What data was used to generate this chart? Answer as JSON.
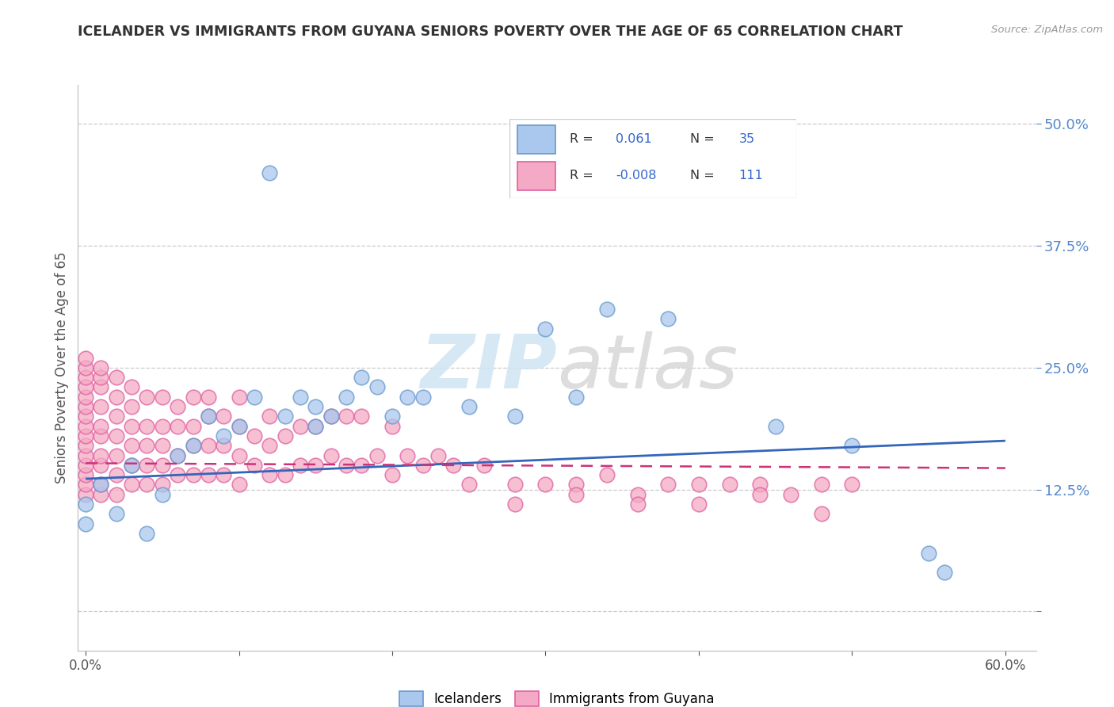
{
  "title": "ICELANDER VS IMMIGRANTS FROM GUYANA SENIORS POVERTY OVER THE AGE OF 65 CORRELATION CHART",
  "source": "Source: ZipAtlas.com",
  "ylabel": "Seniors Poverty Over the Age of 65",
  "xlim": [
    -0.005,
    0.62
  ],
  "ylim": [
    -0.04,
    0.54
  ],
  "xticks": [
    0.0,
    0.1,
    0.2,
    0.3,
    0.4,
    0.5,
    0.6
  ],
  "xticklabels": [
    "0.0%",
    "",
    "",
    "",
    "",
    "",
    "60.0%"
  ],
  "ytick_positions": [
    0.0,
    0.125,
    0.25,
    0.375,
    0.5
  ],
  "ytick_labels": [
    "",
    "12.5%",
    "25.0%",
    "37.5%",
    "50.0%"
  ],
  "color_blue": "#aac8ee",
  "color_blue_edge": "#6699cc",
  "color_pink": "#f4aac4",
  "color_pink_edge": "#e060a0",
  "color_blue_line": "#3366bb",
  "color_pink_line": "#cc3377",
  "watermark_color": "#d0e4f4",
  "icelanders_label": "Icelanders",
  "guyana_label": "Immigrants from Guyana",
  "ice_x": [
    0.0,
    0.0,
    0.01,
    0.02,
    0.03,
    0.04,
    0.05,
    0.06,
    0.07,
    0.08,
    0.09,
    0.1,
    0.11,
    0.12,
    0.13,
    0.14,
    0.15,
    0.15,
    0.16,
    0.17,
    0.18,
    0.19,
    0.2,
    0.21,
    0.22,
    0.25,
    0.28,
    0.3,
    0.32,
    0.34,
    0.38,
    0.45,
    0.5,
    0.55,
    0.56
  ],
  "ice_y": [
    0.11,
    0.09,
    0.13,
    0.1,
    0.15,
    0.08,
    0.12,
    0.16,
    0.17,
    0.2,
    0.18,
    0.19,
    0.22,
    0.45,
    0.2,
    0.22,
    0.19,
    0.21,
    0.2,
    0.22,
    0.24,
    0.23,
    0.2,
    0.22,
    0.22,
    0.21,
    0.2,
    0.29,
    0.22,
    0.31,
    0.3,
    0.19,
    0.17,
    0.06,
    0.04
  ],
  "guy_x": [
    0.0,
    0.0,
    0.0,
    0.0,
    0.0,
    0.0,
    0.0,
    0.0,
    0.0,
    0.0,
    0.0,
    0.0,
    0.0,
    0.0,
    0.0,
    0.01,
    0.01,
    0.01,
    0.01,
    0.01,
    0.01,
    0.01,
    0.01,
    0.01,
    0.01,
    0.02,
    0.02,
    0.02,
    0.02,
    0.02,
    0.02,
    0.02,
    0.03,
    0.03,
    0.03,
    0.03,
    0.03,
    0.03,
    0.04,
    0.04,
    0.04,
    0.04,
    0.04,
    0.05,
    0.05,
    0.05,
    0.05,
    0.05,
    0.06,
    0.06,
    0.06,
    0.06,
    0.07,
    0.07,
    0.07,
    0.07,
    0.08,
    0.08,
    0.08,
    0.08,
    0.09,
    0.09,
    0.09,
    0.1,
    0.1,
    0.1,
    0.1,
    0.11,
    0.11,
    0.12,
    0.12,
    0.12,
    0.13,
    0.13,
    0.14,
    0.14,
    0.15,
    0.15,
    0.16,
    0.16,
    0.17,
    0.17,
    0.18,
    0.18,
    0.19,
    0.2,
    0.2,
    0.21,
    0.22,
    0.23,
    0.24,
    0.25,
    0.26,
    0.28,
    0.3,
    0.32,
    0.34,
    0.36,
    0.38,
    0.4,
    0.42,
    0.44,
    0.46,
    0.48,
    0.5,
    0.28,
    0.32,
    0.36,
    0.4,
    0.44,
    0.48
  ],
  "guy_y": [
    0.12,
    0.13,
    0.14,
    0.15,
    0.16,
    0.17,
    0.18,
    0.19,
    0.2,
    0.21,
    0.22,
    0.23,
    0.24,
    0.25,
    0.26,
    0.12,
    0.13,
    0.15,
    0.16,
    0.18,
    0.19,
    0.21,
    0.23,
    0.24,
    0.25,
    0.12,
    0.14,
    0.16,
    0.18,
    0.2,
    0.22,
    0.24,
    0.13,
    0.15,
    0.17,
    0.19,
    0.21,
    0.23,
    0.13,
    0.15,
    0.17,
    0.19,
    0.22,
    0.13,
    0.15,
    0.17,
    0.19,
    0.22,
    0.14,
    0.16,
    0.19,
    0.21,
    0.14,
    0.17,
    0.19,
    0.22,
    0.14,
    0.17,
    0.2,
    0.22,
    0.14,
    0.17,
    0.2,
    0.13,
    0.16,
    0.19,
    0.22,
    0.15,
    0.18,
    0.14,
    0.17,
    0.2,
    0.14,
    0.18,
    0.15,
    0.19,
    0.15,
    0.19,
    0.16,
    0.2,
    0.15,
    0.2,
    0.15,
    0.2,
    0.16,
    0.14,
    0.19,
    0.16,
    0.15,
    0.16,
    0.15,
    0.13,
    0.15,
    0.13,
    0.13,
    0.13,
    0.14,
    0.12,
    0.13,
    0.13,
    0.13,
    0.13,
    0.12,
    0.13,
    0.13,
    0.11,
    0.12,
    0.11,
    0.11,
    0.12,
    0.1
  ],
  "ice_trend_x0": 0.0,
  "ice_trend_x1": 0.6,
  "ice_trend_y0": 0.136,
  "ice_trend_y1": 0.175,
  "guy_trend_x0": 0.0,
  "guy_trend_x1": 0.6,
  "guy_trend_y0": 0.152,
  "guy_trend_y1": 0.147
}
